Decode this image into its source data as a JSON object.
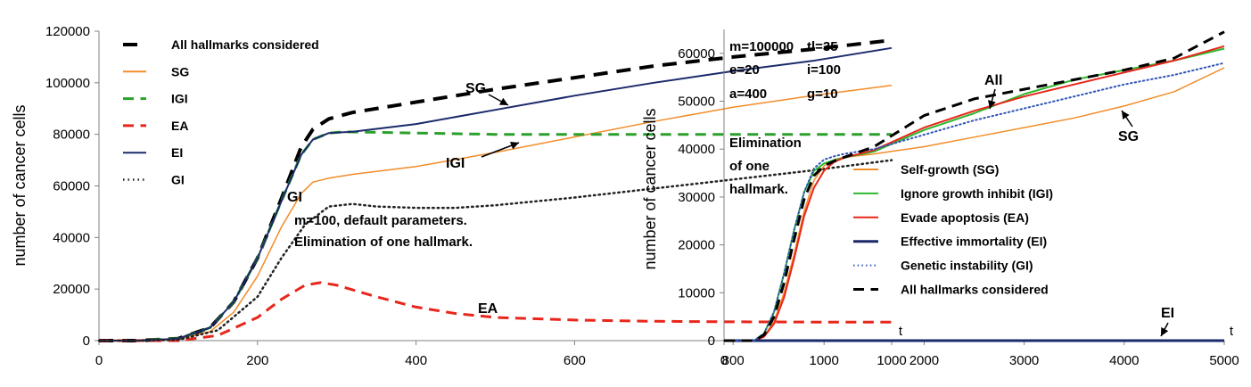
{
  "chart_data": [
    {
      "type": "line",
      "title": "",
      "xlabel": "t",
      "ylabel": "number of cancer cells",
      "xlim": [
        0,
        1000
      ],
      "ylim": [
        0,
        120000
      ],
      "x_ticks": [
        "0",
        "200",
        "400",
        "600",
        "800",
        "1000"
      ],
      "y_ticks": [
        "0",
        "20000",
        "40000",
        "60000",
        "80000",
        "100000",
        "120000"
      ],
      "grid": "off",
      "legend_placement": "top-left",
      "annotations": [
        {
          "text": "m=100, default parameters.",
          "bold": false
        },
        {
          "text": "Elimination of one hallmark.",
          "bold": true
        }
      ],
      "curve_labels": [
        {
          "text": "SG",
          "arrow": true
        },
        {
          "text": "IGI",
          "arrow": true
        },
        {
          "text": "GI",
          "arrow": false
        },
        {
          "text": "EA",
          "arrow": false
        }
      ],
      "series": [
        {
          "name": "All hallmarks considered",
          "color": "#000000",
          "style": "dashed",
          "width": 4,
          "x": [
            0,
            50,
            100,
            140,
            170,
            200,
            230,
            255,
            270,
            290,
            320,
            400,
            500,
            600,
            700,
            800,
            900,
            1000
          ],
          "y": [
            0,
            0,
            800,
            5000,
            15000,
            32000,
            55000,
            75000,
            82000,
            86000,
            88500,
            92500,
            97500,
            102000,
            106500,
            110000,
            113000,
            116500
          ]
        },
        {
          "name": "SG",
          "color": "#f28c28",
          "style": "solid",
          "width": 1.5,
          "x": [
            0,
            50,
            100,
            140,
            170,
            200,
            230,
            255,
            270,
            290,
            320,
            400,
            500,
            600,
            700,
            800,
            900,
            1000
          ],
          "y": [
            0,
            0,
            600,
            3500,
            11000,
            25000,
            44000,
            57000,
            61500,
            63000,
            64500,
            67500,
            73000,
            79000,
            85000,
            90500,
            95000,
            99000
          ]
        },
        {
          "name": "IGI",
          "color": "#2ca02c",
          "style": "dashed",
          "width": 3,
          "x": [
            0,
            50,
            100,
            140,
            170,
            200,
            230,
            255,
            270,
            290,
            310,
            400,
            500,
            600,
            700,
            800,
            900,
            1000
          ],
          "y": [
            0,
            0,
            800,
            5000,
            15000,
            32000,
            54000,
            72000,
            78000,
            80500,
            81000,
            80500,
            80000,
            80000,
            80000,
            80000,
            80000,
            80000
          ]
        },
        {
          "name": "EA",
          "color": "#e8261b",
          "style": "dashed",
          "width": 3,
          "x": [
            0,
            50,
            100,
            150,
            200,
            230,
            260,
            280,
            300,
            350,
            400,
            450,
            500,
            600,
            700,
            800,
            900,
            1000
          ],
          "y": [
            0,
            0,
            0,
            2000,
            9000,
            16000,
            21500,
            22500,
            21500,
            17000,
            13000,
            10500,
            9000,
            8000,
            7500,
            7300,
            7200,
            7200
          ]
        },
        {
          "name": "EI",
          "color": "#1b2a6b",
          "style": "solid",
          "width": 2,
          "x": [
            0,
            50,
            100,
            140,
            170,
            200,
            230,
            255,
            270,
            290,
            320,
            400,
            500,
            600,
            700,
            800,
            900,
            1000
          ],
          "y": [
            0,
            0,
            800,
            5000,
            15000,
            32000,
            54000,
            72000,
            78000,
            80500,
            81000,
            84000,
            89500,
            95000,
            100000,
            104500,
            108500,
            113500
          ]
        },
        {
          "name": "GI",
          "color": "#222222",
          "style": "dotted",
          "width": 2.5,
          "x": [
            0,
            50,
            100,
            150,
            200,
            230,
            260,
            290,
            320,
            350,
            400,
            450,
            500,
            600,
            700,
            800,
            900,
            1000
          ],
          "y": [
            0,
            0,
            300,
            4000,
            17000,
            32000,
            45000,
            52000,
            53000,
            52000,
            51500,
            51500,
            52500,
            55500,
            59000,
            62500,
            66000,
            70000
          ]
        }
      ]
    },
    {
      "type": "line",
      "title": "",
      "xlabel": "t",
      "ylabel": "number of cancer cells",
      "xlim": [
        0,
        5000
      ],
      "ylim": [
        0,
        65000
      ],
      "x_ticks": [
        "0",
        "1000",
        "2000",
        "3000",
        "4000",
        "5000"
      ],
      "y_ticks": [
        "0",
        "10000",
        "20000",
        "30000",
        "40000",
        "50000",
        "60000"
      ],
      "grid": "off",
      "legend_placement": "center-right",
      "parameters": [
        {
          "text": "m=100000"
        },
        {
          "text": "tl=35"
        },
        {
          "text": "e=20"
        },
        {
          "text": "i=100"
        },
        {
          "text": "a=400"
        },
        {
          "text": "g=10"
        }
      ],
      "annotations": [
        {
          "text": "Elimination"
        },
        {
          "text": "of one"
        },
        {
          "text": "hallmark."
        }
      ],
      "curve_labels": [
        {
          "text": "All",
          "arrow": true
        },
        {
          "text": "SG",
          "arrow": true
        },
        {
          "text": "EI",
          "arrow": true
        }
      ],
      "series": [
        {
          "name": "Self-growth (SG)",
          "color": "#f28c28",
          "style": "solid",
          "width": 1.5,
          "x": [
            0,
            300,
            400,
            500,
            600,
            700,
            800,
            900,
            1000,
            1100,
            1200,
            1500,
            2000,
            2500,
            3000,
            3500,
            4000,
            4500,
            5000
          ],
          "y": [
            0,
            0,
            1000,
            4000,
            10000,
            18000,
            27000,
            33500,
            36500,
            37800,
            38300,
            39000,
            40500,
            42500,
            44500,
            46500,
            49000,
            52000,
            57000
          ]
        },
        {
          "name": "Ignore growth inhibit (IGI)",
          "color": "#2db82d",
          "style": "solid",
          "width": 2,
          "x": [
            0,
            300,
            400,
            500,
            600,
            700,
            800,
            900,
            1000,
            1100,
            1200,
            1500,
            2000,
            2500,
            3000,
            3500,
            4000,
            4500,
            5000
          ],
          "y": [
            0,
            0,
            1500,
            6000,
            14000,
            23000,
            31000,
            35500,
            37000,
            37700,
            38200,
            39500,
            44000,
            47500,
            51500,
            54500,
            56500,
            58500,
            61000
          ]
        },
        {
          "name": "Evade apoptosis (EA)",
          "color": "#e8261b",
          "style": "solid",
          "width": 2,
          "x": [
            0,
            300,
            400,
            500,
            600,
            700,
            800,
            900,
            1000,
            1100,
            1200,
            1500,
            2000,
            2500,
            3000,
            3500,
            4000,
            4500,
            5000
          ],
          "y": [
            0,
            0,
            800,
            3500,
            9000,
            17000,
            26000,
            32000,
            35500,
            37300,
            38200,
            39800,
            44500,
            48000,
            51000,
            53500,
            56000,
            58500,
            61500
          ]
        },
        {
          "name": "Effective immortality (EI)",
          "color": "#1b2a6b",
          "style": "solid",
          "width": 3,
          "x": [
            0,
            5000
          ],
          "y": [
            0,
            0
          ]
        },
        {
          "name": "Genetic instability (GI)",
          "color": "#2f55b5",
          "style": "dotted",
          "width": 2,
          "x": [
            0,
            300,
            400,
            500,
            600,
            700,
            800,
            900,
            1000,
            1100,
            1200,
            1500,
            2000,
            2500,
            3000,
            3500,
            4000,
            4500,
            5000
          ],
          "y": [
            0,
            0,
            1500,
            6000,
            14000,
            23000,
            31000,
            36000,
            37800,
            38500,
            39000,
            40000,
            43000,
            46000,
            48500,
            51000,
            53500,
            55500,
            58000
          ]
        },
        {
          "name": "All hallmarks considered",
          "color": "#000000",
          "style": "dashed",
          "width": 3,
          "x": [
            0,
            300,
            400,
            500,
            600,
            700,
            800,
            900,
            1000,
            1100,
            1200,
            1500,
            2000,
            2500,
            3000,
            3500,
            4000,
            4500,
            5000
          ],
          "y": [
            0,
            0,
            1200,
            5000,
            12000,
            21000,
            29500,
            34500,
            36500,
            37500,
            38300,
            40500,
            47000,
            50500,
            52500,
            54500,
            56500,
            59000,
            64500
          ]
        }
      ]
    }
  ]
}
